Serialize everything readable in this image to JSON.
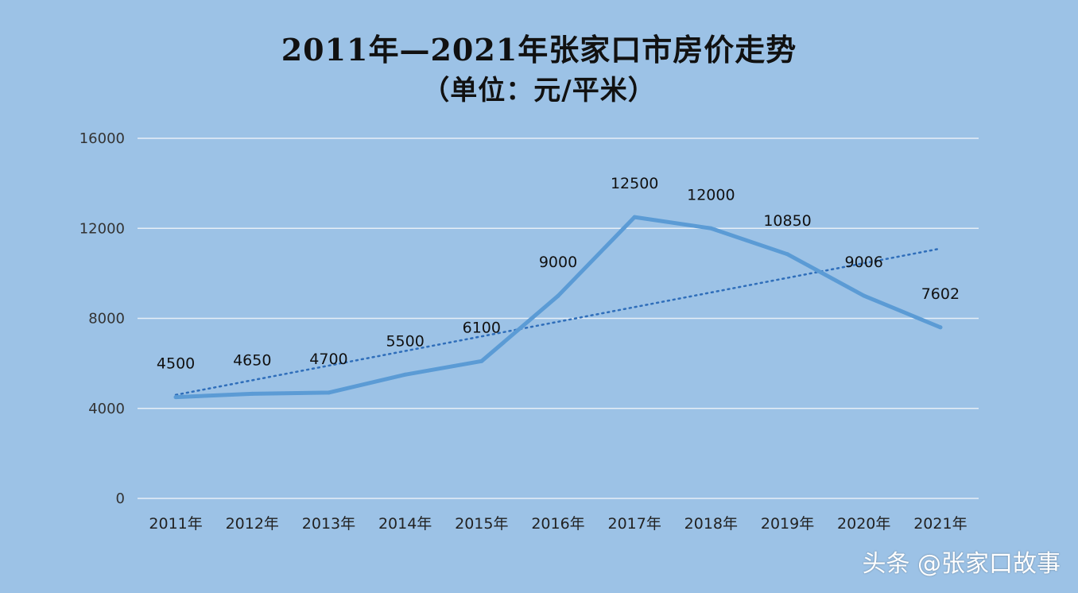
{
  "chart_data": {
    "type": "line",
    "title": "2011年—2021年张家口市房价走势",
    "subtitle": "（单位：元/平米）",
    "categories": [
      "2011年",
      "2012年",
      "2013年",
      "2014年",
      "2015年",
      "2016年",
      "2017年",
      "2018年",
      "2019年",
      "2020年",
      "2021年"
    ],
    "series": [
      {
        "values": [
          4500,
          4650,
          4700,
          5500,
          6100,
          9000,
          12500,
          12000,
          10850,
          9006,
          7602
        ]
      }
    ],
    "data_labels": [
      "4500",
      "4650",
      "4700",
      "5500",
      "6100",
      "9000",
      "12500",
      "12000",
      "10850",
      "9006",
      "7602"
    ],
    "trendline": {
      "type": "linear",
      "style": "dotted",
      "start": 4600,
      "end": 11100
    },
    "ylim": [
      0,
      16000
    ],
    "yticks": [
      0,
      4000,
      8000,
      12000,
      16000
    ],
    "grid": true,
    "legend": "none",
    "colors": {
      "line": "#5b9bd5",
      "trend": "#2f6eba",
      "background": "#9cc2e6",
      "grid": "#e6eef7"
    }
  },
  "watermark": "头条 @张家口故事"
}
